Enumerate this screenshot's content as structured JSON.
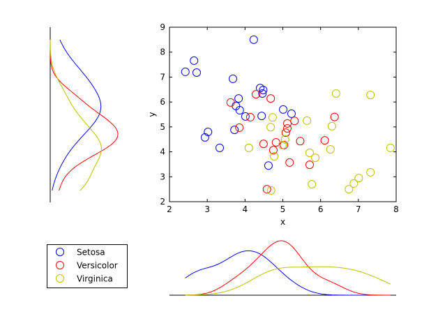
{
  "chart_data": [
    {
      "type": "scatter",
      "xlabel": "x",
      "ylabel": "y",
      "xlim": [
        2,
        8
      ],
      "ylim": [
        2,
        9
      ],
      "xticks": [
        "2",
        "3",
        "4",
        "5",
        "6",
        "7",
        "8"
      ],
      "yticks": [
        "2",
        "3",
        "4",
        "5",
        "6",
        "7",
        "8",
        "9"
      ],
      "grid": false,
      "series": [
        {
          "name": "Setosa",
          "color": "#0000ff",
          "points": [
            [
              2.42,
              7.21
            ],
            [
              2.65,
              7.66
            ],
            [
              2.72,
              7.18
            ],
            [
              4.23,
              8.5
            ],
            [
              3.68,
              6.93
            ],
            [
              4.4,
              6.56
            ],
            [
              4.48,
              6.48
            ],
            [
              4.46,
              6.34
            ],
            [
              3.83,
              6.14
            ],
            [
              3.76,
              5.84
            ],
            [
              3.86,
              5.67
            ],
            [
              4.01,
              5.42
            ],
            [
              4.44,
              5.44
            ],
            [
              5.01,
              5.7
            ],
            [
              5.23,
              5.53
            ],
            [
              3.02,
              4.8
            ],
            [
              2.94,
              4.58
            ],
            [
              3.72,
              4.88
            ],
            [
              3.33,
              4.16
            ],
            [
              4.62,
              3.45
            ]
          ]
        },
        {
          "name": "Versicolor",
          "color": "#ff0000",
          "points": [
            [
              4.29,
              6.31
            ],
            [
              4.68,
              6.14
            ],
            [
              3.62,
              5.98
            ],
            [
              4.14,
              5.39
            ],
            [
              3.85,
              4.97
            ],
            [
              5.12,
              5.14
            ],
            [
              5.12,
              4.94
            ],
            [
              5.08,
              4.77
            ],
            [
              5.31,
              5.24
            ],
            [
              4.49,
              4.32
            ],
            [
              4.82,
              4.38
            ],
            [
              4.75,
              4.07
            ],
            [
              5.46,
              4.43
            ],
            [
              6.11,
              4.46
            ],
            [
              5.18,
              3.57
            ],
            [
              5.71,
              3.48
            ],
            [
              6.37,
              5.4
            ],
            [
              4.58,
              2.5
            ],
            [
              5.03,
              4.27
            ]
          ]
        },
        {
          "name": "Virginica",
          "color": "#bfbf00",
          "points": [
            [
              6.41,
              6.34
            ],
            [
              7.32,
              6.28
            ],
            [
              4.73,
              5.38
            ],
            [
              4.68,
              4.99
            ],
            [
              5.64,
              5.25
            ],
            [
              6.3,
              5.03
            ],
            [
              5.06,
              4.5
            ],
            [
              4.99,
              4.27
            ],
            [
              4.1,
              4.16
            ],
            [
              4.77,
              3.82
            ],
            [
              5.71,
              3.96
            ],
            [
              5.86,
              3.76
            ],
            [
              6.26,
              4.1
            ],
            [
              7.85,
              4.16
            ],
            [
              7.32,
              3.18
            ],
            [
              7.01,
              2.95
            ],
            [
              6.88,
              2.73
            ],
            [
              6.75,
              2.5
            ],
            [
              5.77,
              2.7
            ],
            [
              4.69,
              2.45
            ]
          ]
        }
      ],
      "legend": {
        "placement": "separate-panel-bottom-left",
        "entries": [
          "Setosa",
          "Versicolor",
          "Virginica"
        ]
      }
    },
    {
      "type": "line",
      "description_of": "x marginal density (kernel density of x per series)",
      "axis": "x",
      "orientation": "bottom"
    },
    {
      "type": "line",
      "description_of": "y marginal density (kernel density of y per series)",
      "axis": "y",
      "orientation": "left"
    }
  ]
}
